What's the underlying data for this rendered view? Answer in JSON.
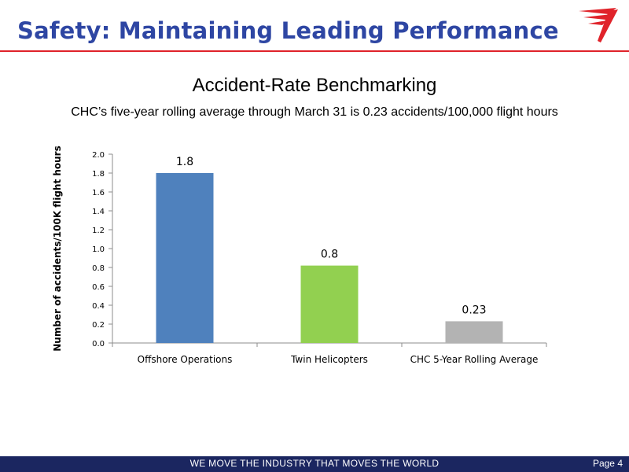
{
  "header": {
    "title": "Safety: Maintaining Leading Performance"
  },
  "slide": {
    "title": "Accident-Rate Benchmarking",
    "subtitle": "CHC’s five-year rolling average through March 31 is 0.23 accidents/100,000 flight hours"
  },
  "footer": {
    "tagline": "WE MOVE THE INDUSTRY THAT MOVES THE WORLD",
    "page": "Page 4"
  },
  "colors": {
    "header_text": "#2e46a3",
    "accent_red": "#e0232a",
    "footer_bg": "#1b2660"
  },
  "chart_data": {
    "type": "bar",
    "title": "",
    "xlabel": "",
    "ylabel": "Number of accidents/100K flight hours",
    "ylim": [
      0,
      2.0
    ],
    "yticks": [
      "0.0",
      "0.2",
      "0.4",
      "0.6",
      "0.8",
      "1.0",
      "1.2",
      "1.4",
      "1.6",
      "1.8",
      "2.0"
    ],
    "grid": false,
    "categories": [
      "Offshore Operations",
      "Twin Helicopters",
      "CHC 5-Year Rolling Average"
    ],
    "values": [
      1.8,
      0.82,
      0.23
    ],
    "data_labels": [
      "1.8",
      "0.8",
      "0.23"
    ],
    "bar_colors": [
      "#4f81bd",
      "#92d050",
      "#b3b3b3"
    ]
  }
}
